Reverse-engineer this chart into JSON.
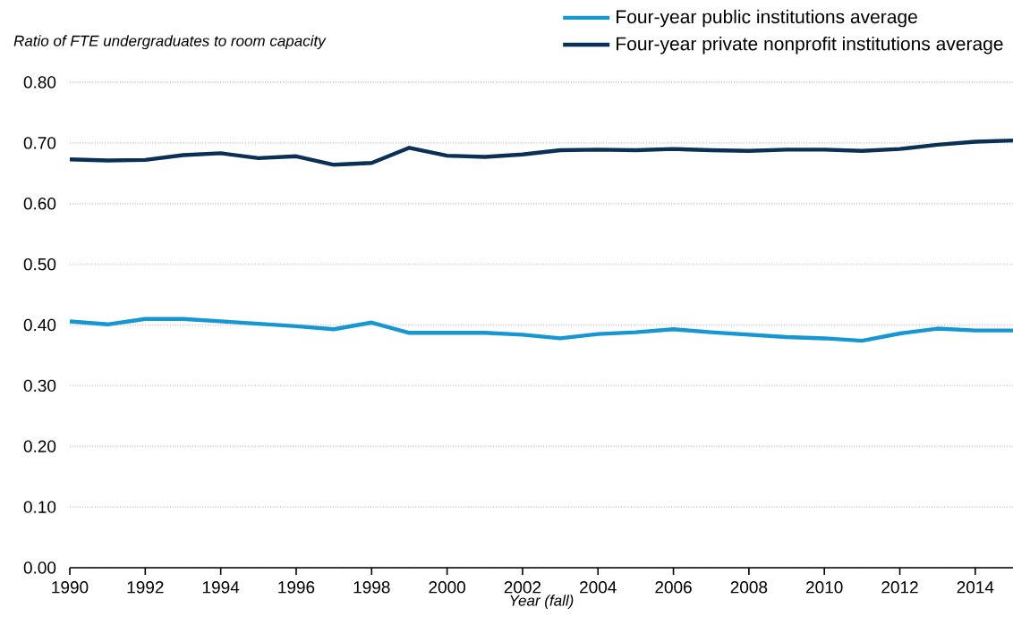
{
  "chart_data": {
    "type": "line",
    "xlabel": "Year (fall)",
    "ylabel": "Ratio of FTE undergraduates to room capacity",
    "x": [
      1990,
      1991,
      1992,
      1993,
      1994,
      1995,
      1996,
      1997,
      1998,
      1999,
      2000,
      2001,
      2002,
      2003,
      2004,
      2005,
      2006,
      2007,
      2008,
      2009,
      2010,
      2011,
      2012,
      2013,
      2014,
      2015
    ],
    "series": [
      {
        "name": "Four-year public institutions average",
        "color": "#1696d2",
        "values": [
          0.406,
          0.401,
          0.41,
          0.41,
          0.406,
          0.402,
          0.398,
          0.393,
          0.404,
          0.387,
          0.387,
          0.387,
          0.384,
          0.378,
          0.385,
          0.388,
          0.393,
          0.388,
          0.384,
          0.38,
          0.378,
          0.374,
          0.386,
          0.394,
          0.391,
          0.391
        ]
      },
      {
        "name": "Four-year private nonprofit institutions average",
        "color": "#0a3055",
        "values": [
          0.673,
          0.671,
          0.672,
          0.68,
          0.683,
          0.675,
          0.678,
          0.664,
          0.667,
          0.692,
          0.679,
          0.677,
          0.681,
          0.688,
          0.689,
          0.688,
          0.69,
          0.688,
          0.687,
          0.689,
          0.689,
          0.687,
          0.69,
          0.697,
          0.702,
          0.704
        ]
      }
    ],
    "xlim": [
      1990,
      2015
    ],
    "xticks": [
      1990,
      1992,
      1994,
      1996,
      1998,
      2000,
      2002,
      2004,
      2006,
      2008,
      2010,
      2012,
      2014
    ],
    "ylim": [
      0,
      0.8
    ],
    "yticks": [
      {
        "value": 0,
        "label": "0.00"
      },
      {
        "value": 0.1,
        "label": "0.10"
      },
      {
        "value": 0.2,
        "label": "0.20"
      },
      {
        "value": 0.3,
        "label": "0.30"
      },
      {
        "value": 0.4,
        "label": "0.40"
      },
      {
        "value": 0.5,
        "label": "0.50"
      },
      {
        "value": 0.6,
        "label": "0.60"
      },
      {
        "value": 0.7,
        "label": "0.70"
      },
      {
        "value": 0.8,
        "label": "0.80"
      }
    ],
    "grid": "y",
    "legend": "top right",
    "marker": "none",
    "line_style": "solid"
  }
}
